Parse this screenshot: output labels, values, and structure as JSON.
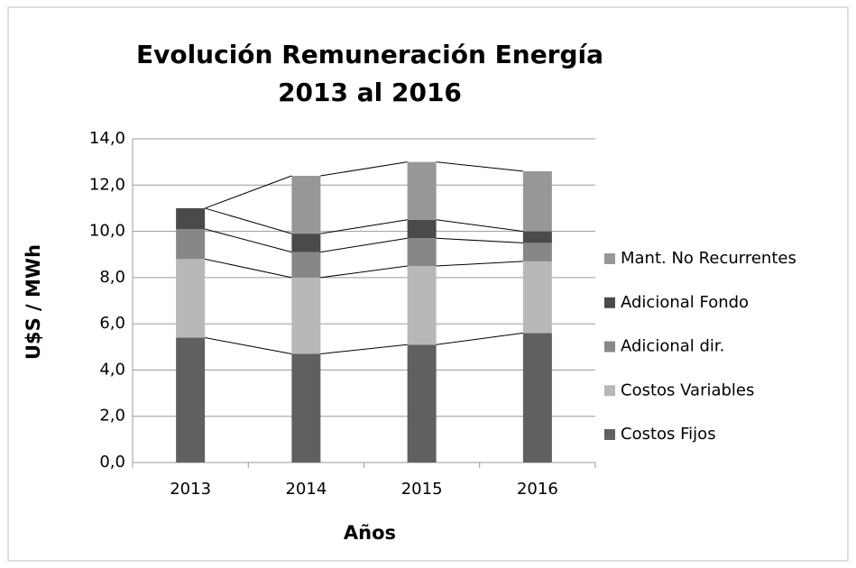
{
  "chart_data": {
    "type": "stacked_bar",
    "title": "Evolución Remuneración Energía",
    "subtitle": "2013 al 2016",
    "x_label": "Años",
    "y_label": "U$S / MWh",
    "categories": [
      "2013",
      "2014",
      "2015",
      "2016"
    ],
    "series": [
      {
        "name": "Costos Fijos",
        "color": "#606060",
        "values": [
          5.4,
          4.7,
          5.1,
          5.6
        ]
      },
      {
        "name": "Costos Variables",
        "color": "#b8b8b8",
        "values": [
          3.4,
          3.3,
          3.4,
          3.1
        ]
      },
      {
        "name": "Adicional dir.",
        "color": "#878787",
        "values": [
          1.3,
          1.1,
          1.2,
          0.8
        ]
      },
      {
        "name": "Adicional Fondo",
        "color": "#4a4a4a",
        "values": [
          0.9,
          0.8,
          0.8,
          0.5
        ]
      },
      {
        "name": "Mant. No Recurrentes",
        "color": "#979797",
        "values": [
          0,
          2.5,
          2.5,
          2.6
        ]
      }
    ],
    "ylim": [
      0,
      14
    ],
    "yticks": [
      {
        "value": 0,
        "label": "0,0"
      },
      {
        "value": 2,
        "label": "2,0"
      },
      {
        "value": 4,
        "label": "4,0"
      },
      {
        "value": 6,
        "label": "6,0"
      },
      {
        "value": 8,
        "label": "8,0"
      },
      {
        "value": 10,
        "label": "10,0"
      },
      {
        "value": 12,
        "label": "12,0"
      },
      {
        "value": 14,
        "label": "14,0"
      }
    ],
    "grid": true,
    "legend": "right",
    "series_lines": true
  }
}
